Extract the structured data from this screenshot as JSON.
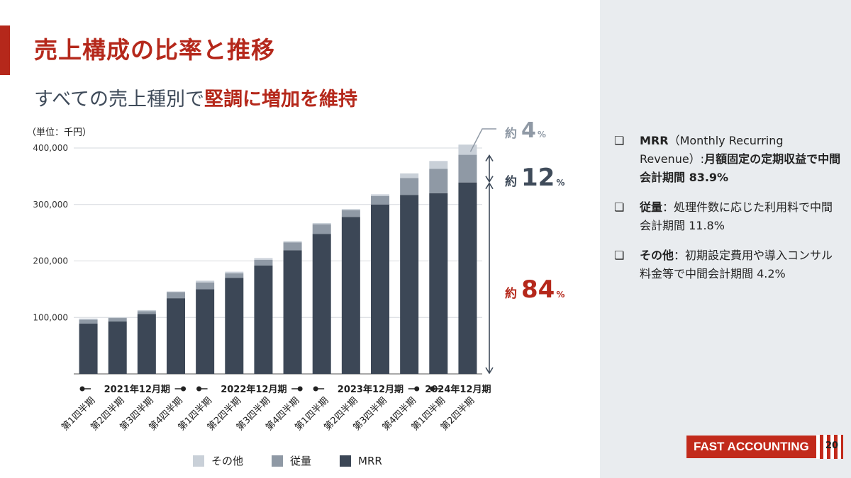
{
  "slide": {
    "title": "売上構成の比率と推移",
    "subtitle_prefix": "すべての売上種別で",
    "subtitle_highlight": "堅調に増加を維持",
    "unit_label": "（単位：千円）",
    "page_number": "20",
    "logo_text": "FAST ACCOUNTING"
  },
  "colors": {
    "accent": "#b5281b",
    "mrr": "#3c4756",
    "jyuryo": "#8f99a5",
    "other": "#c9d0d8",
    "panel": "#e9ecef"
  },
  "chart_data": {
    "type": "bar",
    "stacked": true,
    "categories": [
      "第1四半期",
      "第2四半期",
      "第3四半期",
      "第4四半期",
      "第1四半期",
      "第2四半期",
      "第3四半期",
      "第4四半期",
      "第1四半期",
      "第2四半期",
      "第3四半期",
      "第4四半期",
      "第1四半期",
      "第2四半期"
    ],
    "year_groups": [
      {
        "label": "2021年12月期",
        "start": 0,
        "end": 3
      },
      {
        "label": "2022年12月期",
        "start": 4,
        "end": 7
      },
      {
        "label": "2023年12月期",
        "start": 8,
        "end": 11
      },
      {
        "label": "2024年12月期",
        "start": 12,
        "end": 13
      }
    ],
    "series": [
      {
        "name": "MRR",
        "color": "#3c4756",
        "values": [
          89000,
          93000,
          106000,
          134000,
          150000,
          170000,
          192000,
          219000,
          248000,
          278000,
          300000,
          317000,
          320000,
          339000
        ]
      },
      {
        "name": "従量",
        "color": "#8f99a5",
        "values": [
          7000,
          6000,
          5000,
          11000,
          12000,
          8000,
          10000,
          14000,
          17000,
          12000,
          15000,
          30000,
          43000,
          49000
        ]
      },
      {
        "name": "その他",
        "color": "#c9d0d8",
        "values": [
          2000,
          1000,
          2000,
          1000,
          3000,
          3000,
          3000,
          2000,
          2000,
          2000,
          3000,
          8000,
          14000,
          18000
        ]
      }
    ],
    "ylim": [
      0,
      400000
    ],
    "yticks": [
      100000,
      200000,
      300000,
      400000
    ],
    "ytick_labels": [
      "100,000",
      "200,000",
      "300,000",
      "400,000"
    ],
    "ylabel": "（単位：千円）",
    "legend": [
      "その他",
      "従量",
      "MRR"
    ],
    "annotations": [
      {
        "prefix": "約",
        "value": "4",
        "suffix": "%",
        "segment": "その他"
      },
      {
        "prefix": "約",
        "value": "12",
        "suffix": "%",
        "segment": "従量"
      },
      {
        "prefix": "約",
        "value": "84",
        "suffix": "%",
        "segment": "MRR"
      }
    ]
  },
  "notes": [
    {
      "icon": "❏",
      "term": "MRR",
      "paren": "（Monthly Recurring Revenue）:",
      "desc": "月額固定の定期収益で中間会計期間 83.9%"
    },
    {
      "icon": "❏",
      "term": "従量",
      "paren": "：",
      "desc": "処理件数に応じた利用料で中間会計期間 11.8%"
    },
    {
      "icon": "❏",
      "term": "その他",
      "paren": "：",
      "desc": "初期設定費用や導入コンサル料金等で中間会計期間 4.2%"
    }
  ]
}
